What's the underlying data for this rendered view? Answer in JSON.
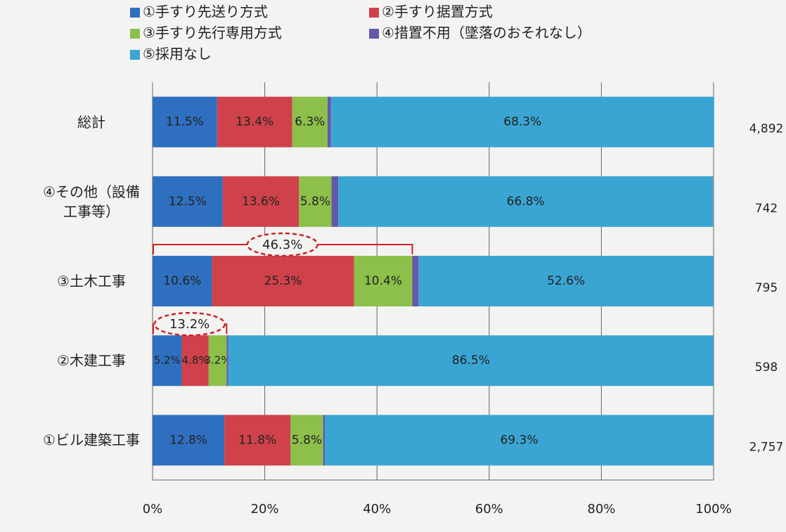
{
  "chart_data": {
    "type": "stacked_bar_horizontal",
    "categories": [
      "総計",
      "④その他（設備工事等）",
      "③土木工事",
      "②木建工事",
      "①ビル建築工事"
    ],
    "series": [
      {
        "name": "①手すり先送り方式",
        "color": "#2f6fbf",
        "values": [
          11.5,
          12.5,
          10.6,
          5.2,
          12.8
        ],
        "value_labels": [
          "11.5%",
          "12.5%",
          "10.6%",
          "5.2%",
          "12.8%"
        ]
      },
      {
        "name": "②手すり据置方式",
        "color": "#cf424b",
        "values": [
          13.4,
          13.6,
          25.3,
          4.8,
          11.8
        ],
        "value_labels": [
          "13.4%",
          "13.6%",
          "25.3%",
          "4.8%",
          "11.8%"
        ]
      },
      {
        "name": "③手すり先行専用方式",
        "color": "#8dbf4b",
        "values": [
          6.3,
          5.8,
          10.4,
          3.2,
          5.8
        ],
        "value_labels": [
          "6.3%",
          "5.8%",
          "10.4%",
          "3.2%",
          "5.8%"
        ]
      },
      {
        "name": "④措置不用（墜落のおそれなし）",
        "color": "#6657a8",
        "values": [
          0.6,
          1.2,
          1.1,
          0.3,
          0.3
        ],
        "value_labels": [
          "0.6%",
          "1.2%",
          "1.1%",
          "0.3%",
          "0.3%"
        ]
      },
      {
        "name": "⑤採用なし",
        "color": "#3aa5d2",
        "values": [
          68.3,
          66.8,
          52.6,
          86.5,
          69.3
        ],
        "value_labels": [
          "68.3%",
          "66.8%",
          "52.6%",
          "86.5%",
          "69.3%"
        ]
      }
    ],
    "totals": [
      {
        "value": 4892,
        "label": "4,892"
      },
      {
        "value": 742,
        "label": "742"
      },
      {
        "value": 795,
        "label": "795"
      },
      {
        "value": 598,
        "label": "598"
      },
      {
        "value": 2757,
        "label": "2,757"
      }
    ],
    "annotations": [
      {
        "category": "③土木工事",
        "value": 46.3,
        "label": "46.3%"
      },
      {
        "category": "②木建工事",
        "value": 13.2,
        "label": "13.2%"
      }
    ],
    "xlim": [
      0,
      100
    ],
    "xticks": [
      {
        "value": 0,
        "label": "0%"
      },
      {
        "value": 20,
        "label": "20%"
      },
      {
        "value": 40,
        "label": "40%"
      },
      {
        "value": 60,
        "label": "60%"
      },
      {
        "value": 80,
        "label": "80%"
      },
      {
        "value": 100,
        "label": "100%"
      }
    ],
    "grid": true
  }
}
